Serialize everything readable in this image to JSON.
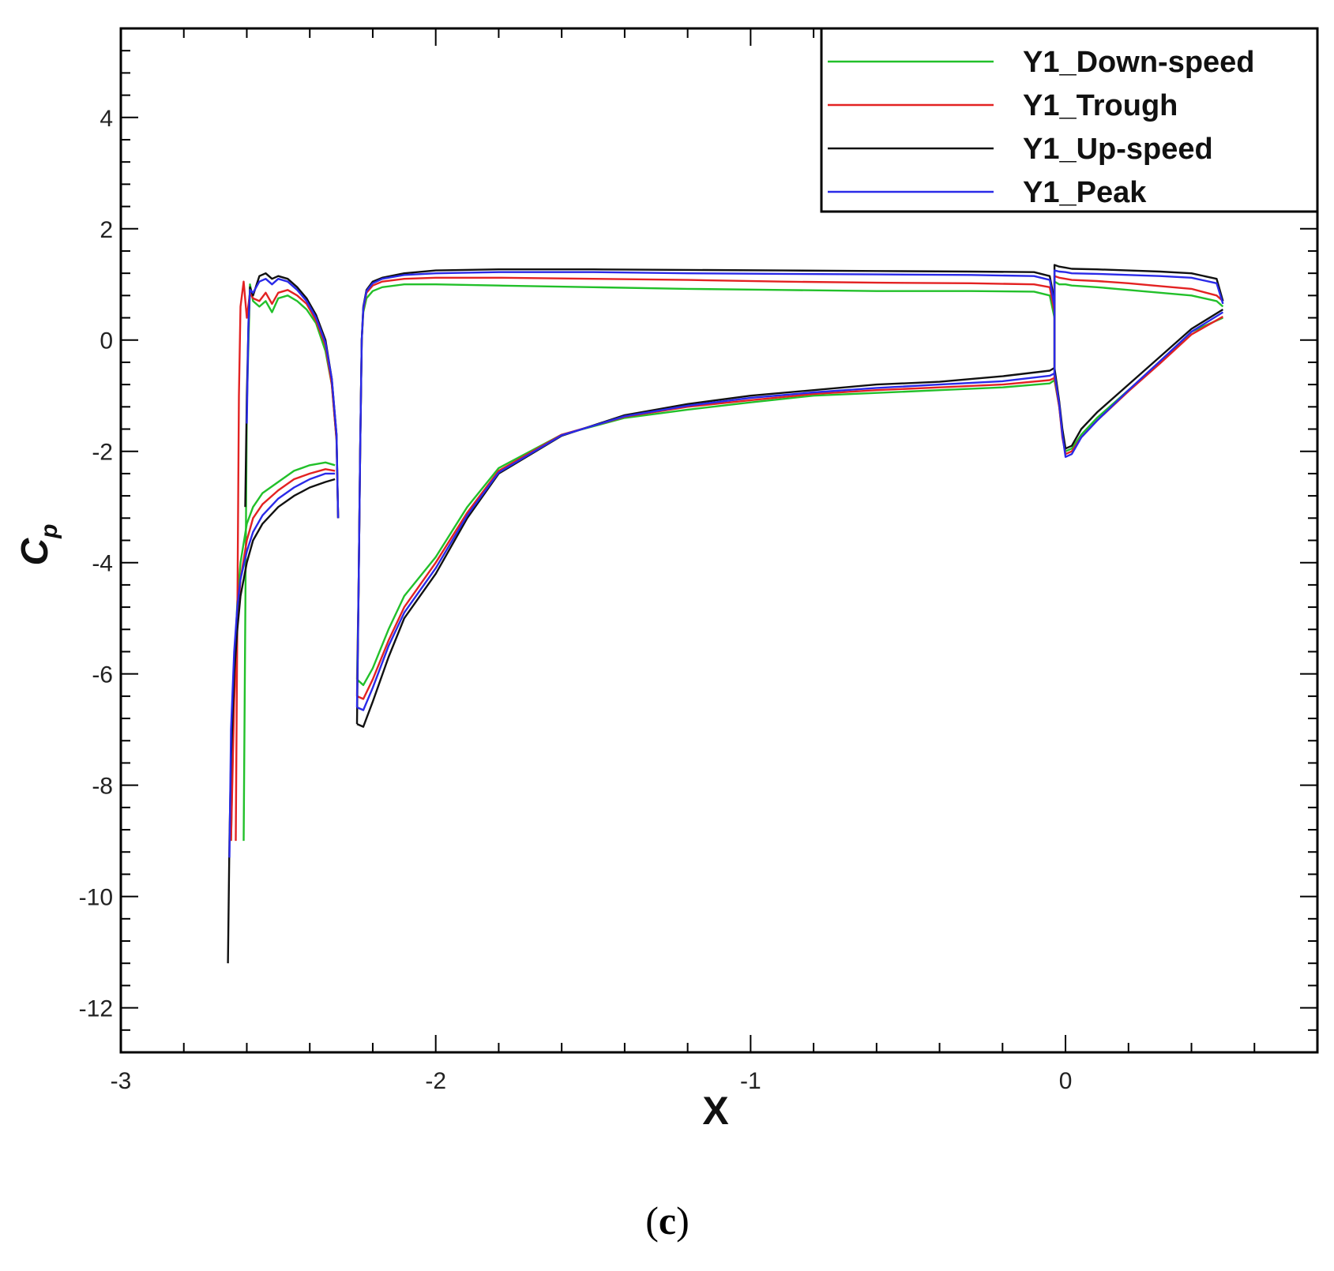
{
  "panel_label": {
    "open": "(",
    "letter": "c",
    "close": ")"
  },
  "chart_data": {
    "type": "line",
    "xlabel": "X",
    "ylabel": "C",
    "ylabel_sub": "p",
    "xlim": [
      -3,
      0.8
    ],
    "ylim": [
      -12.8,
      5.6
    ],
    "xticks": [
      -3,
      -2,
      -1,
      0
    ],
    "xtick_labels": [
      "-3",
      "-2",
      "-1",
      "0"
    ],
    "yticks": [
      -12,
      -10,
      -8,
      -6,
      -4,
      -2,
      0,
      2,
      4
    ],
    "ytick_labels": [
      "-12",
      "-10",
      "-8",
      "-6",
      "-4",
      "-2",
      "0",
      "2",
      "4"
    ],
    "grid": false,
    "legend_position": "top-right",
    "series": [
      {
        "name": "Y1_Down-speed",
        "color": "#22c02a",
        "segments": [
          {
            "x": [
              -2.61,
              -2.6,
              -2.59,
              -2.58,
              -2.56,
              -2.54,
              -2.52,
              -2.5,
              -2.47,
              -2.44,
              -2.41,
              -2.38,
              -2.35,
              -2.33,
              -2.315,
              -2.31
            ],
            "y": [
              -9.0,
              -1.2,
              1.0,
              0.7,
              0.6,
              0.7,
              0.5,
              0.75,
              0.8,
              0.7,
              0.55,
              0.3,
              -0.2,
              -0.8,
              -1.8,
              -3.2
            ]
          },
          {
            "x": [
              -2.65,
              -2.64,
              -2.63,
              -2.62,
              -2.6,
              -2.58,
              -2.55,
              -2.5,
              -2.45,
              -2.4,
              -2.35,
              -2.32
            ],
            "y": [
              -9.0,
              -6.0,
              -4.7,
              -4.0,
              -3.3,
              -3.0,
              -2.75,
              -2.55,
              -2.35,
              -2.25,
              -2.2,
              -2.25
            ]
          },
          {
            "x": [
              -2.25,
              -2.245,
              -2.24,
              -2.235,
              -2.23,
              -2.22,
              -2.2,
              -2.17,
              -2.1,
              -2.0,
              -1.8,
              -1.5,
              -1.2,
              -0.9,
              -0.6,
              -0.3,
              -0.1,
              -0.05,
              -0.035
            ],
            "y": [
              -6.1,
              -4.5,
              -2.0,
              0.0,
              0.5,
              0.75,
              0.88,
              0.95,
              1.0,
              1.0,
              0.98,
              0.95,
              0.92,
              0.9,
              0.88,
              0.88,
              0.87,
              0.8,
              0.4
            ]
          },
          {
            "x": [
              -2.25,
              -2.23,
              -2.2,
              -2.15,
              -2.1,
              -2.0,
              -1.9,
              -1.8,
              -1.6,
              -1.4,
              -1.2,
              -1.0,
              -0.8,
              -0.6,
              -0.4,
              -0.2,
              -0.05,
              -0.035
            ],
            "y": [
              -6.1,
              -6.2,
              -5.9,
              -5.2,
              -4.6,
              -3.9,
              -3.0,
              -2.3,
              -1.7,
              -1.4,
              -1.25,
              -1.12,
              -1.0,
              -0.95,
              -0.9,
              -0.85,
              -0.78,
              -0.72
            ]
          },
          {
            "x": [
              -0.035,
              -0.035,
              -0.02,
              0.0,
              0.02,
              0.1,
              0.2,
              0.3,
              0.4,
              0.48,
              0.5
            ],
            "y": [
              -0.72,
              1.05,
              1.0,
              1.0,
              0.98,
              0.95,
              0.9,
              0.85,
              0.8,
              0.7,
              0.6
            ]
          },
          {
            "x": [
              -0.035,
              -0.02,
              -0.01,
              0.0,
              0.02,
              0.05,
              0.1,
              0.2,
              0.3,
              0.4,
              0.5
            ],
            "y": [
              -0.72,
              -1.2,
              -1.7,
              -2.0,
              -1.95,
              -1.7,
              -1.4,
              -0.9,
              -0.4,
              0.15,
              0.4
            ]
          }
        ]
      },
      {
        "name": "Y1_Trough",
        "color": "#e32222",
        "segments": [
          {
            "x": [
              -2.635,
              -2.625,
              -2.62,
              -2.61,
              -2.6,
              -2.59,
              -2.58,
              -2.56,
              -2.54,
              -2.52,
              -2.5,
              -2.47,
              -2.44,
              -2.41,
              -2.38,
              -2.35,
              -2.33,
              -2.315,
              -2.31
            ],
            "y": [
              -9.0,
              -1.0,
              0.6,
              1.05,
              0.4,
              0.85,
              0.75,
              0.7,
              0.85,
              0.65,
              0.85,
              0.9,
              0.8,
              0.65,
              0.35,
              -0.1,
              -0.8,
              -1.8,
              -3.2
            ]
          },
          {
            "x": [
              -2.65,
              -2.64,
              -2.63,
              -2.62,
              -2.6,
              -2.58,
              -2.55,
              -2.5,
              -2.45,
              -2.4,
              -2.35,
              -2.32
            ],
            "y": [
              -9.0,
              -6.5,
              -5.1,
              -4.3,
              -3.6,
              -3.2,
              -2.95,
              -2.7,
              -2.5,
              -2.4,
              -2.32,
              -2.35
            ]
          },
          {
            "x": [
              -2.25,
              -2.245,
              -2.24,
              -2.235,
              -2.23,
              -2.22,
              -2.2,
              -2.17,
              -2.1,
              -2.0,
              -1.8,
              -1.5,
              -1.2,
              -0.9,
              -0.6,
              -0.3,
              -0.1,
              -0.05,
              -0.035
            ],
            "y": [
              -6.4,
              -4.5,
              -2.0,
              0.0,
              0.55,
              0.85,
              0.98,
              1.05,
              1.1,
              1.12,
              1.12,
              1.1,
              1.08,
              1.05,
              1.03,
              1.02,
              1.0,
              0.95,
              0.5
            ]
          },
          {
            "x": [
              -2.25,
              -2.23,
              -2.2,
              -2.15,
              -2.1,
              -2.0,
              -1.9,
              -1.8,
              -1.6,
              -1.4,
              -1.2,
              -1.0,
              -0.8,
              -0.6,
              -0.4,
              -0.2,
              -0.05,
              -0.035
            ],
            "y": [
              -6.4,
              -6.45,
              -6.1,
              -5.4,
              -4.8,
              -4.0,
              -3.1,
              -2.35,
              -1.7,
              -1.38,
              -1.2,
              -1.08,
              -0.97,
              -0.9,
              -0.85,
              -0.8,
              -0.72,
              -0.68
            ]
          },
          {
            "x": [
              -0.035,
              -0.035,
              -0.02,
              0.0,
              0.02,
              0.1,
              0.2,
              0.3,
              0.4,
              0.48,
              0.5
            ],
            "y": [
              -0.68,
              1.15,
              1.12,
              1.1,
              1.08,
              1.06,
              1.02,
              0.97,
              0.92,
              0.8,
              0.7
            ]
          },
          {
            "x": [
              -0.035,
              -0.02,
              -0.01,
              0.0,
              0.02,
              0.05,
              0.1,
              0.2,
              0.3,
              0.4,
              0.5
            ],
            "y": [
              -0.68,
              -1.2,
              -1.75,
              -2.05,
              -2.0,
              -1.75,
              -1.45,
              -0.92,
              -0.42,
              0.1,
              0.42
            ]
          }
        ]
      },
      {
        "name": "Y1_Up-speed",
        "color": "#111111",
        "segments": [
          {
            "x": [
              -2.605,
              -2.6,
              -2.595,
              -2.59,
              -2.58,
              -2.56,
              -2.54,
              -2.52,
              -2.5,
              -2.47,
              -2.44,
              -2.41,
              -2.38,
              -2.35,
              -2.33,
              -2.315,
              -2.31
            ],
            "y": [
              -3.0,
              -1.0,
              0.2,
              0.95,
              0.8,
              1.15,
              1.2,
              1.1,
              1.15,
              1.1,
              0.95,
              0.75,
              0.45,
              0.0,
              -0.7,
              -1.7,
              -3.2
            ]
          },
          {
            "x": [
              -2.66,
              -2.655,
              -2.65,
              -2.64,
              -2.63,
              -2.62,
              -2.6,
              -2.58,
              -2.55,
              -2.5,
              -2.45,
              -2.4,
              -2.35,
              -2.32
            ],
            "y": [
              -11.2,
              -9.0,
              -7.5,
              -6.0,
              -5.2,
              -4.6,
              -4.0,
              -3.6,
              -3.3,
              -3.0,
              -2.8,
              -2.65,
              -2.55,
              -2.5
            ]
          },
          {
            "x": [
              -2.25,
              -2.245,
              -2.24,
              -2.235,
              -2.23,
              -2.22,
              -2.2,
              -2.17,
              -2.1,
              -2.0,
              -1.8,
              -1.5,
              -1.2,
              -0.9,
              -0.6,
              -0.3,
              -0.1,
              -0.05,
              -0.035
            ],
            "y": [
              -6.9,
              -4.5,
              -2.0,
              0.0,
              0.6,
              0.9,
              1.05,
              1.12,
              1.2,
              1.25,
              1.27,
              1.27,
              1.26,
              1.25,
              1.24,
              1.23,
              1.22,
              1.15,
              0.7
            ]
          },
          {
            "x": [
              -2.25,
              -2.23,
              -2.2,
              -2.15,
              -2.1,
              -2.0,
              -1.9,
              -1.8,
              -1.6,
              -1.4,
              -1.2,
              -1.0,
              -0.8,
              -0.6,
              -0.4,
              -0.2,
              -0.05,
              -0.035
            ],
            "y": [
              -6.9,
              -6.95,
              -6.5,
              -5.7,
              -5.0,
              -4.2,
              -3.2,
              -2.4,
              -1.72,
              -1.35,
              -1.15,
              -1.0,
              -0.9,
              -0.8,
              -0.75,
              -0.65,
              -0.55,
              -0.5
            ]
          },
          {
            "x": [
              -0.035,
              -0.035,
              -0.02,
              0.0,
              0.02,
              0.1,
              0.2,
              0.3,
              0.4,
              0.48,
              0.5
            ],
            "y": [
              -0.5,
              1.35,
              1.32,
              1.3,
              1.28,
              1.27,
              1.25,
              1.23,
              1.2,
              1.1,
              0.7
            ]
          },
          {
            "x": [
              -0.035,
              -0.02,
              -0.01,
              0.0,
              0.02,
              0.05,
              0.1,
              0.2,
              0.3,
              0.4,
              0.5
            ],
            "y": [
              -0.5,
              -1.1,
              -1.6,
              -1.95,
              -1.9,
              -1.6,
              -1.3,
              -0.8,
              -0.3,
              0.2,
              0.55
            ]
          }
        ]
      },
      {
        "name": "Y1_Peak",
        "color": "#2a2ae8",
        "segments": [
          {
            "x": [
              -2.6,
              -2.595,
              -2.59,
              -2.58,
              -2.56,
              -2.54,
              -2.52,
              -2.5,
              -2.47,
              -2.44,
              -2.41,
              -2.38,
              -2.35,
              -2.33,
              -2.315,
              -2.31
            ],
            "y": [
              -1.5,
              0.3,
              0.9,
              0.85,
              1.05,
              1.1,
              1.0,
              1.1,
              1.05,
              0.9,
              0.7,
              0.4,
              -0.05,
              -0.7,
              -1.7,
              -3.2
            ]
          },
          {
            "x": [
              -2.655,
              -2.65,
              -2.64,
              -2.63,
              -2.62,
              -2.6,
              -2.58,
              -2.55,
              -2.5,
              -2.45,
              -2.4,
              -2.35,
              -2.32
            ],
            "y": [
              -9.3,
              -7.0,
              -5.6,
              -4.8,
              -4.3,
              -3.8,
              -3.45,
              -3.15,
              -2.85,
              -2.65,
              -2.5,
              -2.4,
              -2.4
            ]
          },
          {
            "x": [
              -2.25,
              -2.245,
              -2.24,
              -2.235,
              -2.23,
              -2.22,
              -2.2,
              -2.17,
              -2.1,
              -2.0,
              -1.8,
              -1.5,
              -1.2,
              -0.9,
              -0.6,
              -0.3,
              -0.1,
              -0.05,
              -0.035
            ],
            "y": [
              -6.6,
              -4.5,
              -2.0,
              0.0,
              0.58,
              0.88,
              1.02,
              1.1,
              1.17,
              1.2,
              1.22,
              1.22,
              1.2,
              1.19,
              1.18,
              1.17,
              1.15,
              1.08,
              0.6
            ]
          },
          {
            "x": [
              -2.25,
              -2.23,
              -2.2,
              -2.15,
              -2.1,
              -2.0,
              -1.9,
              -1.8,
              -1.6,
              -1.4,
              -1.2,
              -1.0,
              -0.8,
              -0.6,
              -0.4,
              -0.2,
              -0.05,
              -0.035
            ],
            "y": [
              -6.6,
              -6.65,
              -6.25,
              -5.5,
              -4.9,
              -4.1,
              -3.15,
              -2.38,
              -1.71,
              -1.37,
              -1.18,
              -1.04,
              -0.94,
              -0.86,
              -0.8,
              -0.74,
              -0.64,
              -0.6
            ]
          },
          {
            "x": [
              -0.035,
              -0.035,
              -0.02,
              0.0,
              0.02,
              0.1,
              0.2,
              0.3,
              0.4,
              0.48,
              0.5
            ],
            "y": [
              -0.6,
              1.25,
              1.23,
              1.22,
              1.2,
              1.19,
              1.17,
              1.15,
              1.12,
              1.02,
              0.65
            ]
          },
          {
            "x": [
              -0.035,
              -0.02,
              -0.01,
              0.0,
              0.02,
              0.05,
              0.1,
              0.2,
              0.3,
              0.4,
              0.5
            ],
            "y": [
              -0.6,
              -1.15,
              -1.7,
              -2.1,
              -2.05,
              -1.75,
              -1.45,
              -0.9,
              -0.38,
              0.15,
              0.5
            ]
          }
        ]
      }
    ]
  }
}
